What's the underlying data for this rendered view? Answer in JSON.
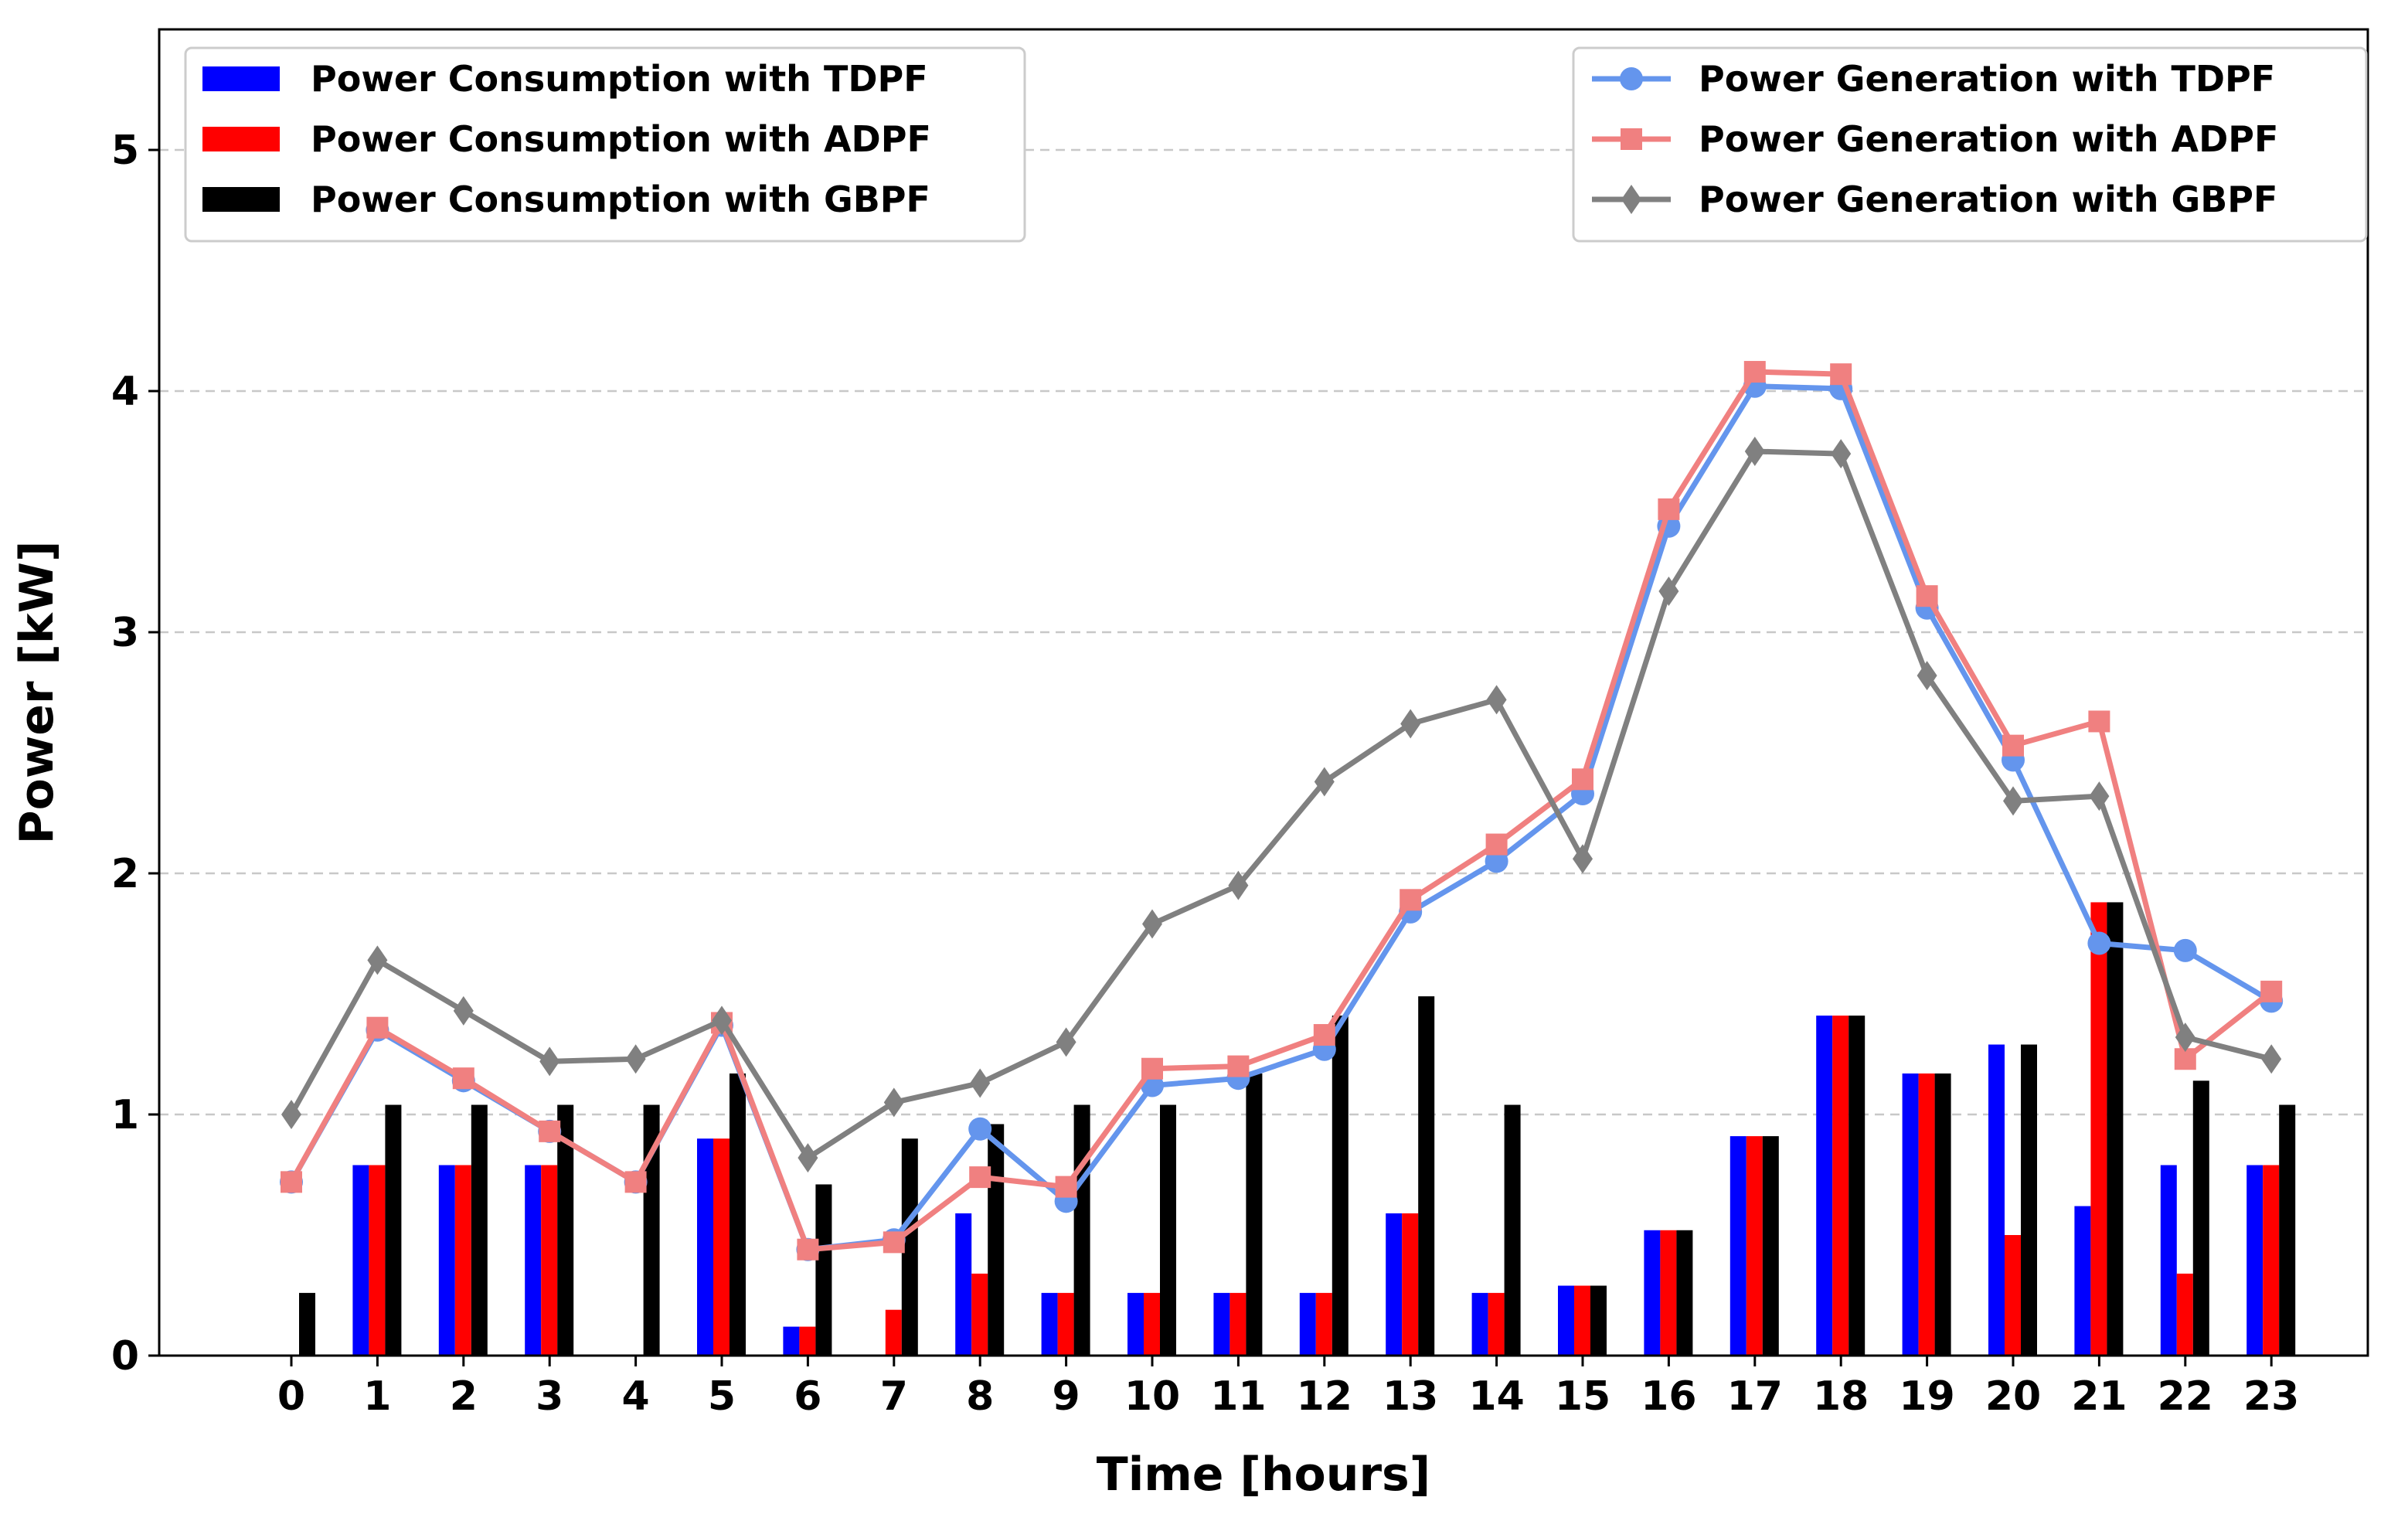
{
  "chart_data": {
    "type": "bar+line",
    "title": "",
    "xlabel": "Time [hours]",
    "ylabel": "Power [kW]",
    "ylim": [
      0,
      5.5
    ],
    "yticks": [
      0,
      1,
      2,
      3,
      4,
      5
    ],
    "grid": "horizontal dashed",
    "categories": [
      "0",
      "1",
      "2",
      "3",
      "4",
      "5",
      "6",
      "7",
      "8",
      "9",
      "10",
      "11",
      "12",
      "13",
      "14",
      "15",
      "16",
      "17",
      "18",
      "19",
      "20",
      "21",
      "22",
      "23"
    ],
    "bar_series": [
      {
        "name": "Power Consumption with TDPF",
        "color": "#0000ff",
        "values": [
          0,
          0.79,
          0.79,
          0.79,
          0,
          0.9,
          0.12,
          0,
          0.59,
          0.26,
          0.26,
          0.26,
          0.26,
          0.59,
          0.26,
          0.29,
          0.52,
          0.91,
          1.41,
          1.17,
          1.29,
          0.62,
          0.79,
          0.79
        ]
      },
      {
        "name": "Power Consumption with ADPF",
        "color": "#ff0000",
        "values": [
          0,
          0.79,
          0.79,
          0.79,
          0,
          0.9,
          0.12,
          0.19,
          0.34,
          0.26,
          0.26,
          0.26,
          0.26,
          0.59,
          0.26,
          0.29,
          0.52,
          0.91,
          1.41,
          1.17,
          0.5,
          1.88,
          0.34,
          0.79
        ]
      },
      {
        "name": "Power Consumption with GBPF",
        "color": "#000000",
        "values": [
          0.26,
          1.04,
          1.04,
          1.04,
          1.04,
          1.17,
          0.71,
          0.9,
          0.96,
          1.04,
          1.04,
          1.17,
          1.41,
          1.49,
          1.04,
          0.29,
          0.52,
          0.91,
          1.41,
          1.17,
          1.29,
          1.88,
          1.14,
          1.04
        ]
      }
    ],
    "line_series": [
      {
        "name": "Power Generation with TDPF",
        "color": "#6495ed",
        "marker": "circle",
        "values": [
          0.72,
          1.35,
          1.14,
          0.93,
          0.72,
          1.37,
          0.44,
          0.48,
          0.94,
          0.64,
          1.12,
          1.15,
          1.27,
          1.84,
          2.05,
          2.33,
          3.44,
          4.02,
          4.01,
          3.1,
          2.47,
          1.71,
          1.68,
          1.47
        ]
      },
      {
        "name": "Power Generation with ADPF",
        "color": "#f08080",
        "marker": "square",
        "values": [
          0.72,
          1.36,
          1.15,
          0.93,
          0.72,
          1.38,
          0.44,
          0.47,
          0.74,
          0.7,
          1.19,
          1.2,
          1.33,
          1.89,
          2.12,
          2.39,
          3.51,
          4.08,
          4.07,
          3.15,
          2.53,
          2.63,
          1.23,
          1.51
        ]
      },
      {
        "name": "Power Generation with GBPF",
        "color": "#808080",
        "marker": "diamond",
        "values": [
          1.0,
          1.64,
          1.43,
          1.22,
          1.23,
          1.39,
          0.82,
          1.05,
          1.13,
          1.3,
          1.79,
          1.95,
          2.38,
          2.62,
          2.72,
          2.06,
          3.17,
          3.75,
          3.74,
          2.82,
          2.3,
          2.32,
          1.32,
          1.23
        ]
      }
    ],
    "legends": [
      {
        "placement": "top-left",
        "series": "bar_series"
      },
      {
        "placement": "top-right",
        "series": "line_series"
      }
    ]
  }
}
